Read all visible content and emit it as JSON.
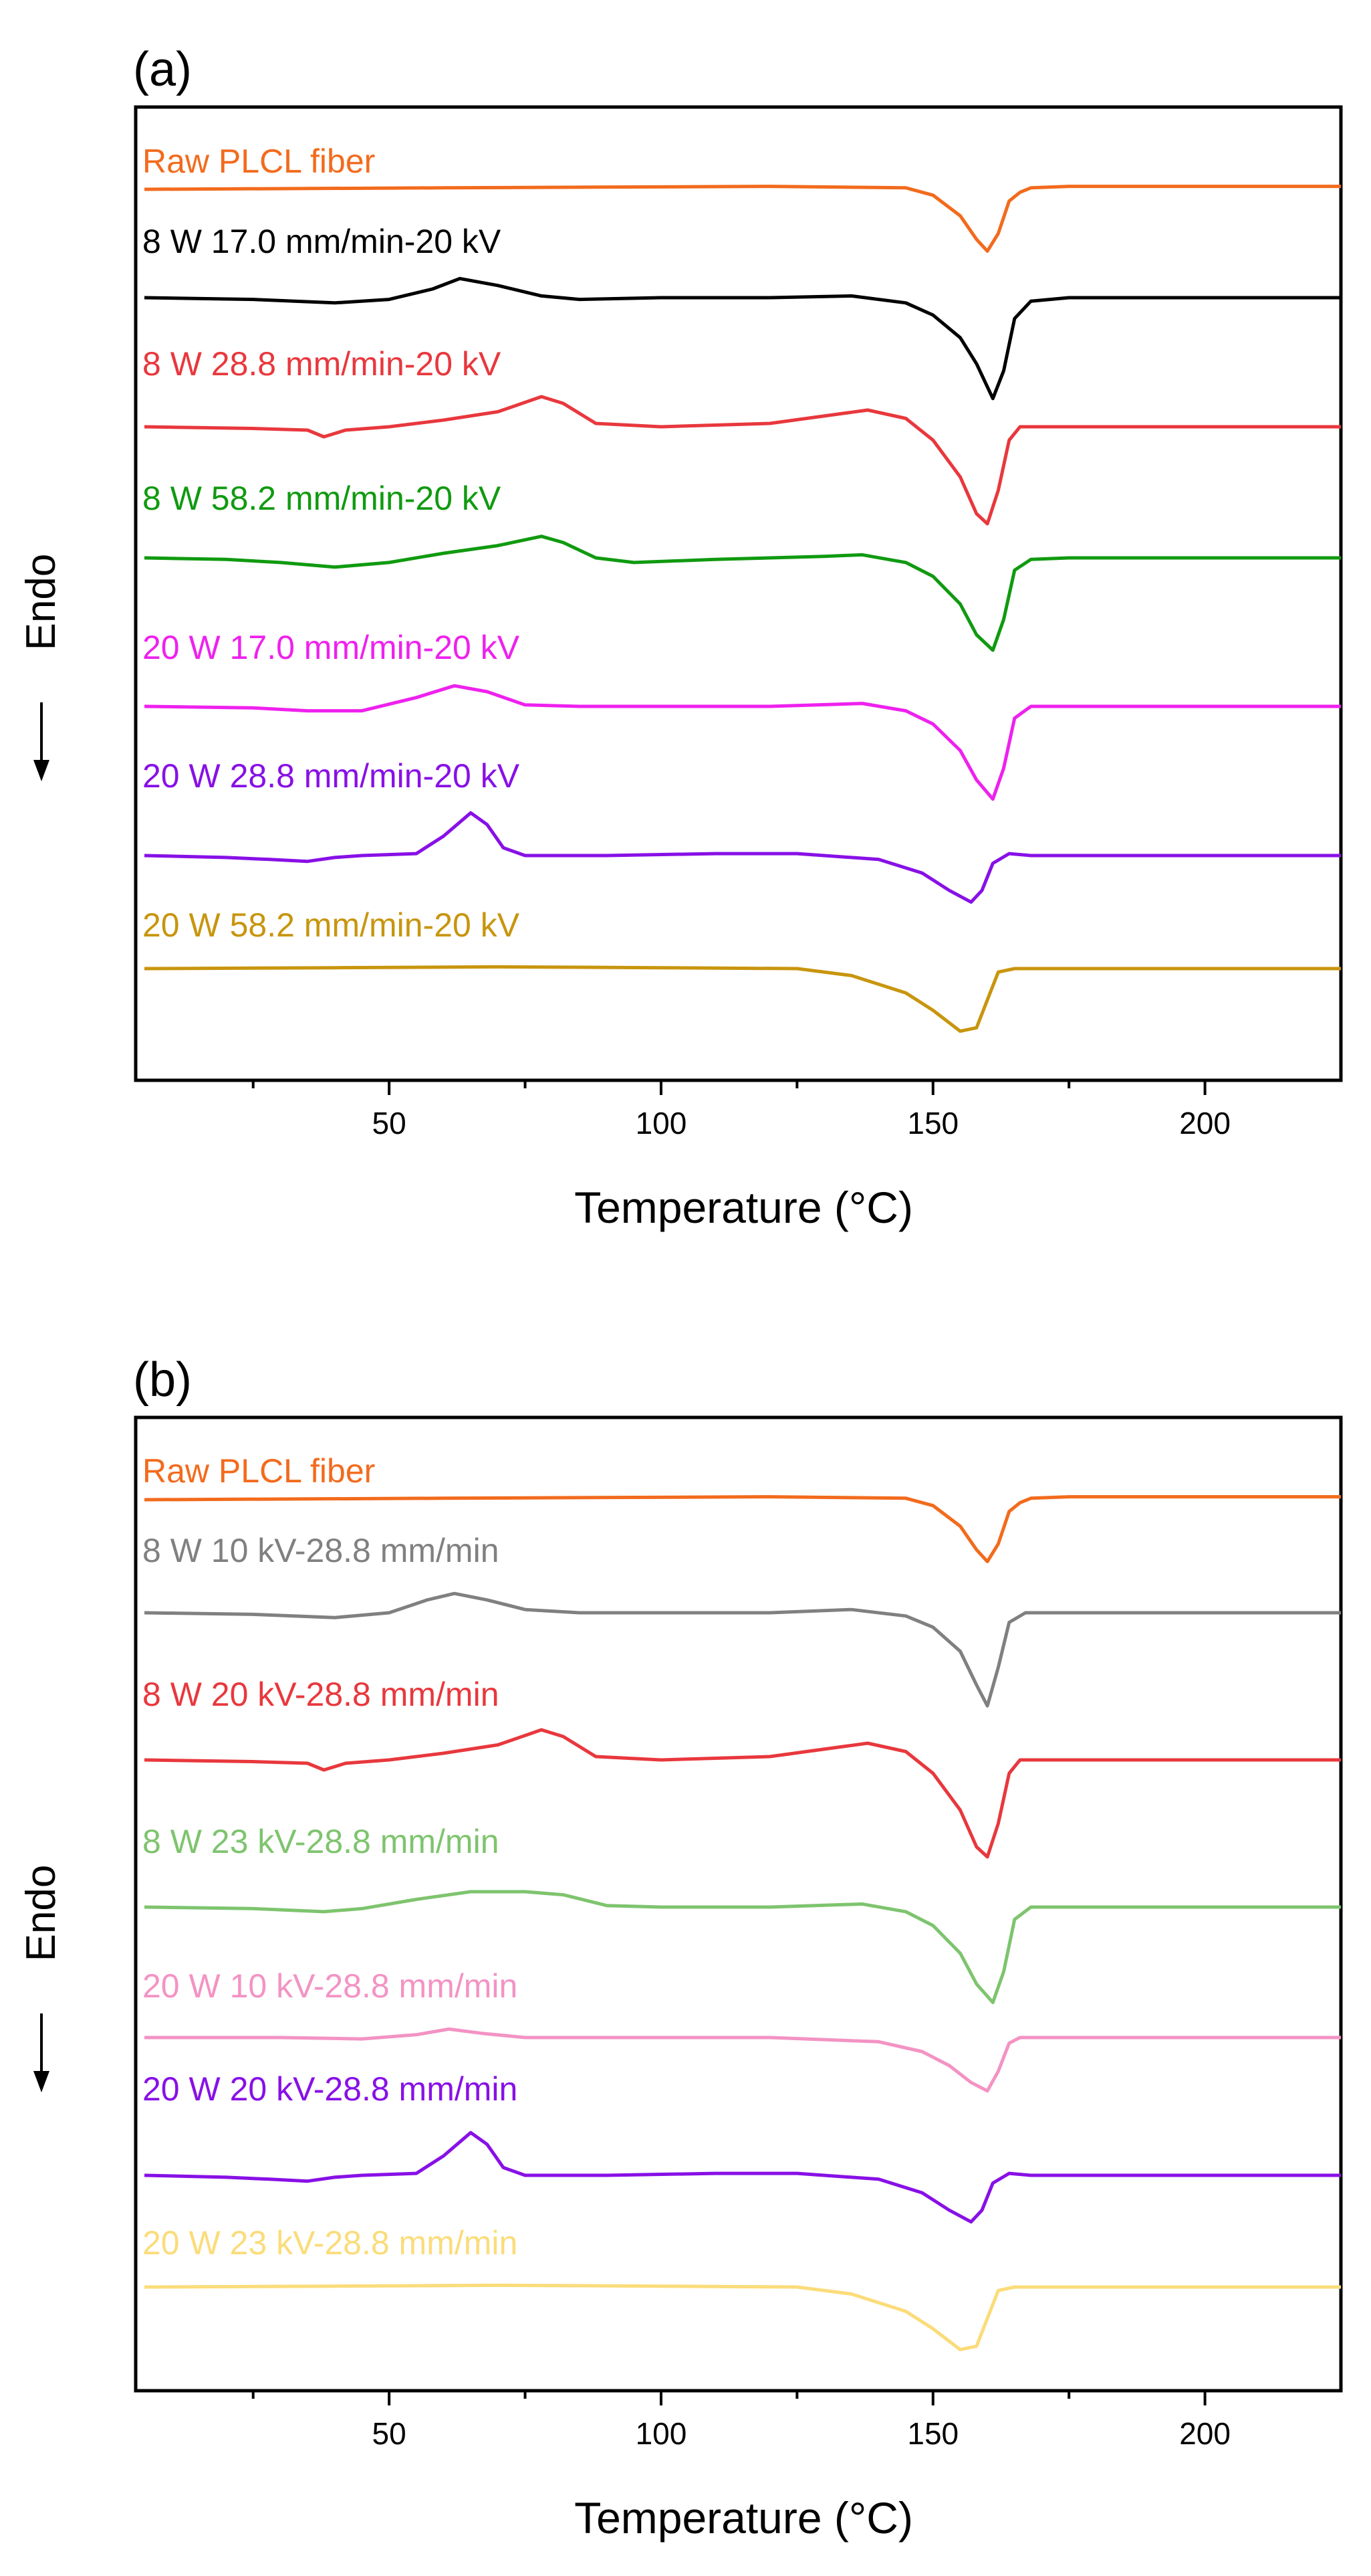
{
  "chart_data": [
    {
      "panel_label": "(a)",
      "type": "line",
      "xlabel": "Temperature (°C)",
      "ylabel": "Endo",
      "xlim": [
        5,
        225
      ],
      "xticks": [
        50,
        100,
        150,
        200
      ],
      "grid": false,
      "series": [
        {
          "name": "Raw PLCL fiber",
          "color": "#f26b1d",
          "x": [
            5,
            60,
            120,
            145,
            150,
            155,
            158,
            160,
            162,
            164,
            166,
            168,
            175,
            200,
            225
          ],
          "y": [
            0,
            0.1,
            0.2,
            0.1,
            -0.4,
            -1.8,
            -3.4,
            -4.2,
            -3.0,
            -0.8,
            -0.2,
            0.1,
            0.2,
            0.2,
            0.2
          ]
        },
        {
          "name": "8 W 17.0 mm/min-20 kV",
          "color": "#000000",
          "x": [
            5,
            25,
            40,
            50,
            58,
            63,
            70,
            78,
            85,
            100,
            120,
            135,
            145,
            150,
            155,
            158,
            161,
            163,
            165,
            168,
            175,
            200,
            225
          ],
          "y": [
            0,
            -0.1,
            -0.3,
            -0.1,
            0.5,
            1.1,
            0.7,
            0.1,
            -0.1,
            0,
            0,
            0.1,
            -0.3,
            -1.0,
            -2.3,
            -3.8,
            -5.8,
            -4.2,
            -1.2,
            -0.2,
            0,
            0,
            0
          ]
        },
        {
          "name": "8 W 28.8 mm/min-20 kV",
          "color": "#e8383d",
          "x": [
            5,
            25,
            35,
            38,
            42,
            50,
            60,
            70,
            78,
            82,
            88,
            100,
            120,
            138,
            145,
            150,
            155,
            158,
            160,
            162,
            164,
            166,
            175,
            200,
            225
          ],
          "y": [
            0,
            -0.1,
            -0.2,
            -0.6,
            -0.2,
            0,
            0.4,
            0.9,
            1.8,
            1.4,
            0.2,
            0,
            0.2,
            1.0,
            0.5,
            -0.8,
            -3.0,
            -5.2,
            -5.8,
            -3.8,
            -0.8,
            0,
            0,
            0,
            0
          ]
        },
        {
          "name": "8 W 58.2 mm/min-20 kV",
          "color": "#109a10",
          "x": [
            5,
            20,
            30,
            40,
            50,
            60,
            70,
            78,
            82,
            88,
            95,
            110,
            130,
            137,
            145,
            150,
            155,
            158,
            161,
            163,
            165,
            168,
            175,
            200,
            225
          ],
          "y": [
            0,
            -0.1,
            -0.3,
            -0.6,
            -0.3,
            0.3,
            0.8,
            1.4,
            1.0,
            0.0,
            -0.3,
            -0.1,
            0.1,
            0.2,
            -0.3,
            -1.2,
            -3.0,
            -5.0,
            -6.0,
            -4.0,
            -0.8,
            -0.1,
            0,
            0,
            0
          ]
        },
        {
          "name": "20 W 17.0 mm/min-20 kV",
          "color": "#ee21ee",
          "x": [
            5,
            25,
            35,
            45,
            55,
            62,
            68,
            75,
            85,
            100,
            120,
            137,
            145,
            150,
            155,
            158,
            161,
            163,
            165,
            168,
            175,
            200,
            225
          ],
          "y": [
            0,
            -0.1,
            -0.3,
            -0.3,
            0.6,
            1.4,
            1.0,
            0.1,
            0,
            0,
            0,
            0.2,
            -0.3,
            -1.2,
            -3.0,
            -5.0,
            -6.3,
            -4.2,
            -0.8,
            0,
            0,
            0,
            0
          ]
        },
        {
          "name": "20 W 28.8 mm/min-20 kV",
          "color": "#8810e6",
          "x": [
            5,
            20,
            28,
            35,
            40,
            45,
            55,
            60,
            65,
            68,
            71,
            75,
            90,
            110,
            125,
            140,
            148,
            153,
            157,
            159,
            161,
            164,
            168,
            175,
            200,
            225
          ],
          "y": [
            0,
            -0.1,
            -0.2,
            -0.3,
            -0.1,
            0,
            0.1,
            1.0,
            2.2,
            1.6,
            0.4,
            0,
            0,
            0.1,
            0.1,
            -0.2,
            -0.9,
            -1.8,
            -2.4,
            -1.8,
            -0.4,
            0.1,
            0,
            0,
            0,
            0
          ]
        },
        {
          "name": "20 W 58.2 mm/min-20 kV",
          "color": "#c8950e",
          "x": [
            5,
            40,
            70,
            100,
            125,
            135,
            145,
            150,
            155,
            158,
            160,
            162,
            165,
            175,
            200,
            225
          ],
          "y": [
            0,
            0.05,
            0.1,
            0.05,
            0,
            -0.4,
            -1.4,
            -2.4,
            -3.6,
            -3.4,
            -1.8,
            -0.2,
            0,
            0,
            0,
            0
          ]
        }
      ]
    },
    {
      "panel_label": "(b)",
      "type": "line",
      "xlabel": "Temperature (°C)",
      "ylabel": "Endo",
      "xlim": [
        5,
        225
      ],
      "xticks": [
        50,
        100,
        150,
        200
      ],
      "grid": false,
      "series": [
        {
          "name": "Raw PLCL fiber",
          "color": "#f26b1d",
          "x": [
            5,
            60,
            120,
            145,
            150,
            155,
            158,
            160,
            162,
            164,
            166,
            168,
            175,
            200,
            225
          ],
          "y": [
            0,
            0.1,
            0.2,
            0.1,
            -0.4,
            -1.8,
            -3.4,
            -4.2,
            -3.0,
            -0.8,
            -0.2,
            0.1,
            0.2,
            0.2,
            0.2
          ]
        },
        {
          "name": "8 W 10 kV-28.8 mm/min",
          "color": "#808080",
          "x": [
            5,
            25,
            40,
            50,
            57,
            62,
            68,
            75,
            85,
            100,
            120,
            135,
            145,
            150,
            155,
            158,
            160,
            162,
            164,
            167,
            175,
            200,
            225
          ],
          "y": [
            0,
            -0.1,
            -0.3,
            0,
            0.8,
            1.2,
            0.8,
            0.2,
            0,
            0,
            0,
            0.2,
            -0.2,
            -0.9,
            -2.4,
            -4.5,
            -5.8,
            -3.4,
            -0.6,
            0,
            0,
            0,
            0
          ]
        },
        {
          "name": "8 W 20 kV-28.8 mm/min",
          "color": "#e8383d",
          "x": [
            5,
            25,
            35,
            38,
            42,
            50,
            60,
            70,
            78,
            82,
            88,
            100,
            120,
            138,
            145,
            150,
            155,
            158,
            160,
            162,
            164,
            166,
            175,
            200,
            225
          ],
          "y": [
            0,
            -0.1,
            -0.2,
            -0.6,
            -0.2,
            0,
            0.4,
            0.9,
            1.8,
            1.4,
            0.2,
            0,
            0.2,
            1.0,
            0.5,
            -0.8,
            -3.0,
            -5.2,
            -5.8,
            -3.8,
            -0.8,
            0,
            0,
            0,
            0
          ]
        },
        {
          "name": "8 W 23 kV-28.8 mm/min",
          "color": "#7ec46e",
          "x": [
            5,
            25,
            38,
            45,
            55,
            65,
            75,
            82,
            90,
            100,
            120,
            137,
            145,
            150,
            155,
            158,
            161,
            163,
            165,
            168,
            175,
            200,
            225
          ],
          "y": [
            0,
            -0.1,
            -0.3,
            -0.1,
            0.5,
            1.0,
            1.0,
            0.8,
            0.1,
            0,
            0,
            0.2,
            -0.3,
            -1.2,
            -3.0,
            -5.0,
            -6.2,
            -4.2,
            -0.8,
            0,
            0,
            0,
            0
          ]
        },
        {
          "name": "20 W 10 kV-28.8 mm/min",
          "color": "#f393c4",
          "x": [
            5,
            30,
            45,
            55,
            61,
            67,
            75,
            90,
            120,
            140,
            148,
            153,
            157,
            160,
            162,
            164,
            166,
            175,
            200,
            225
          ],
          "y": [
            0,
            0,
            -0.1,
            0.2,
            0.6,
            0.3,
            0,
            0,
            0,
            -0.3,
            -1.0,
            -2.0,
            -3.2,
            -3.8,
            -2.4,
            -0.4,
            0,
            0,
            0,
            0
          ]
        },
        {
          "name": "20 W 20 kV-28.8 mm/min",
          "color": "#8810e6",
          "x": [
            5,
            20,
            28,
            35,
            40,
            45,
            55,
            60,
            65,
            68,
            71,
            75,
            90,
            110,
            125,
            140,
            148,
            153,
            157,
            159,
            161,
            164,
            168,
            175,
            200,
            225
          ],
          "y": [
            0,
            -0.1,
            -0.2,
            -0.3,
            -0.1,
            0,
            0.1,
            1.0,
            2.2,
            1.6,
            0.4,
            0,
            0,
            0.1,
            0.1,
            -0.2,
            -0.9,
            -1.8,
            -2.4,
            -1.8,
            -0.4,
            0.1,
            0,
            0,
            0,
            0
          ]
        },
        {
          "name": "20 W 23 kV-28.8 mm/min",
          "color": "#fbdc7a",
          "x": [
            5,
            40,
            70,
            100,
            125,
            135,
            145,
            150,
            155,
            158,
            160,
            162,
            165,
            175,
            200,
            225
          ],
          "y": [
            0,
            0.05,
            0.1,
            0.05,
            0,
            -0.4,
            -1.4,
            -2.4,
            -3.6,
            -3.4,
            -1.8,
            -0.2,
            0,
            0,
            0,
            0
          ]
        }
      ]
    }
  ]
}
